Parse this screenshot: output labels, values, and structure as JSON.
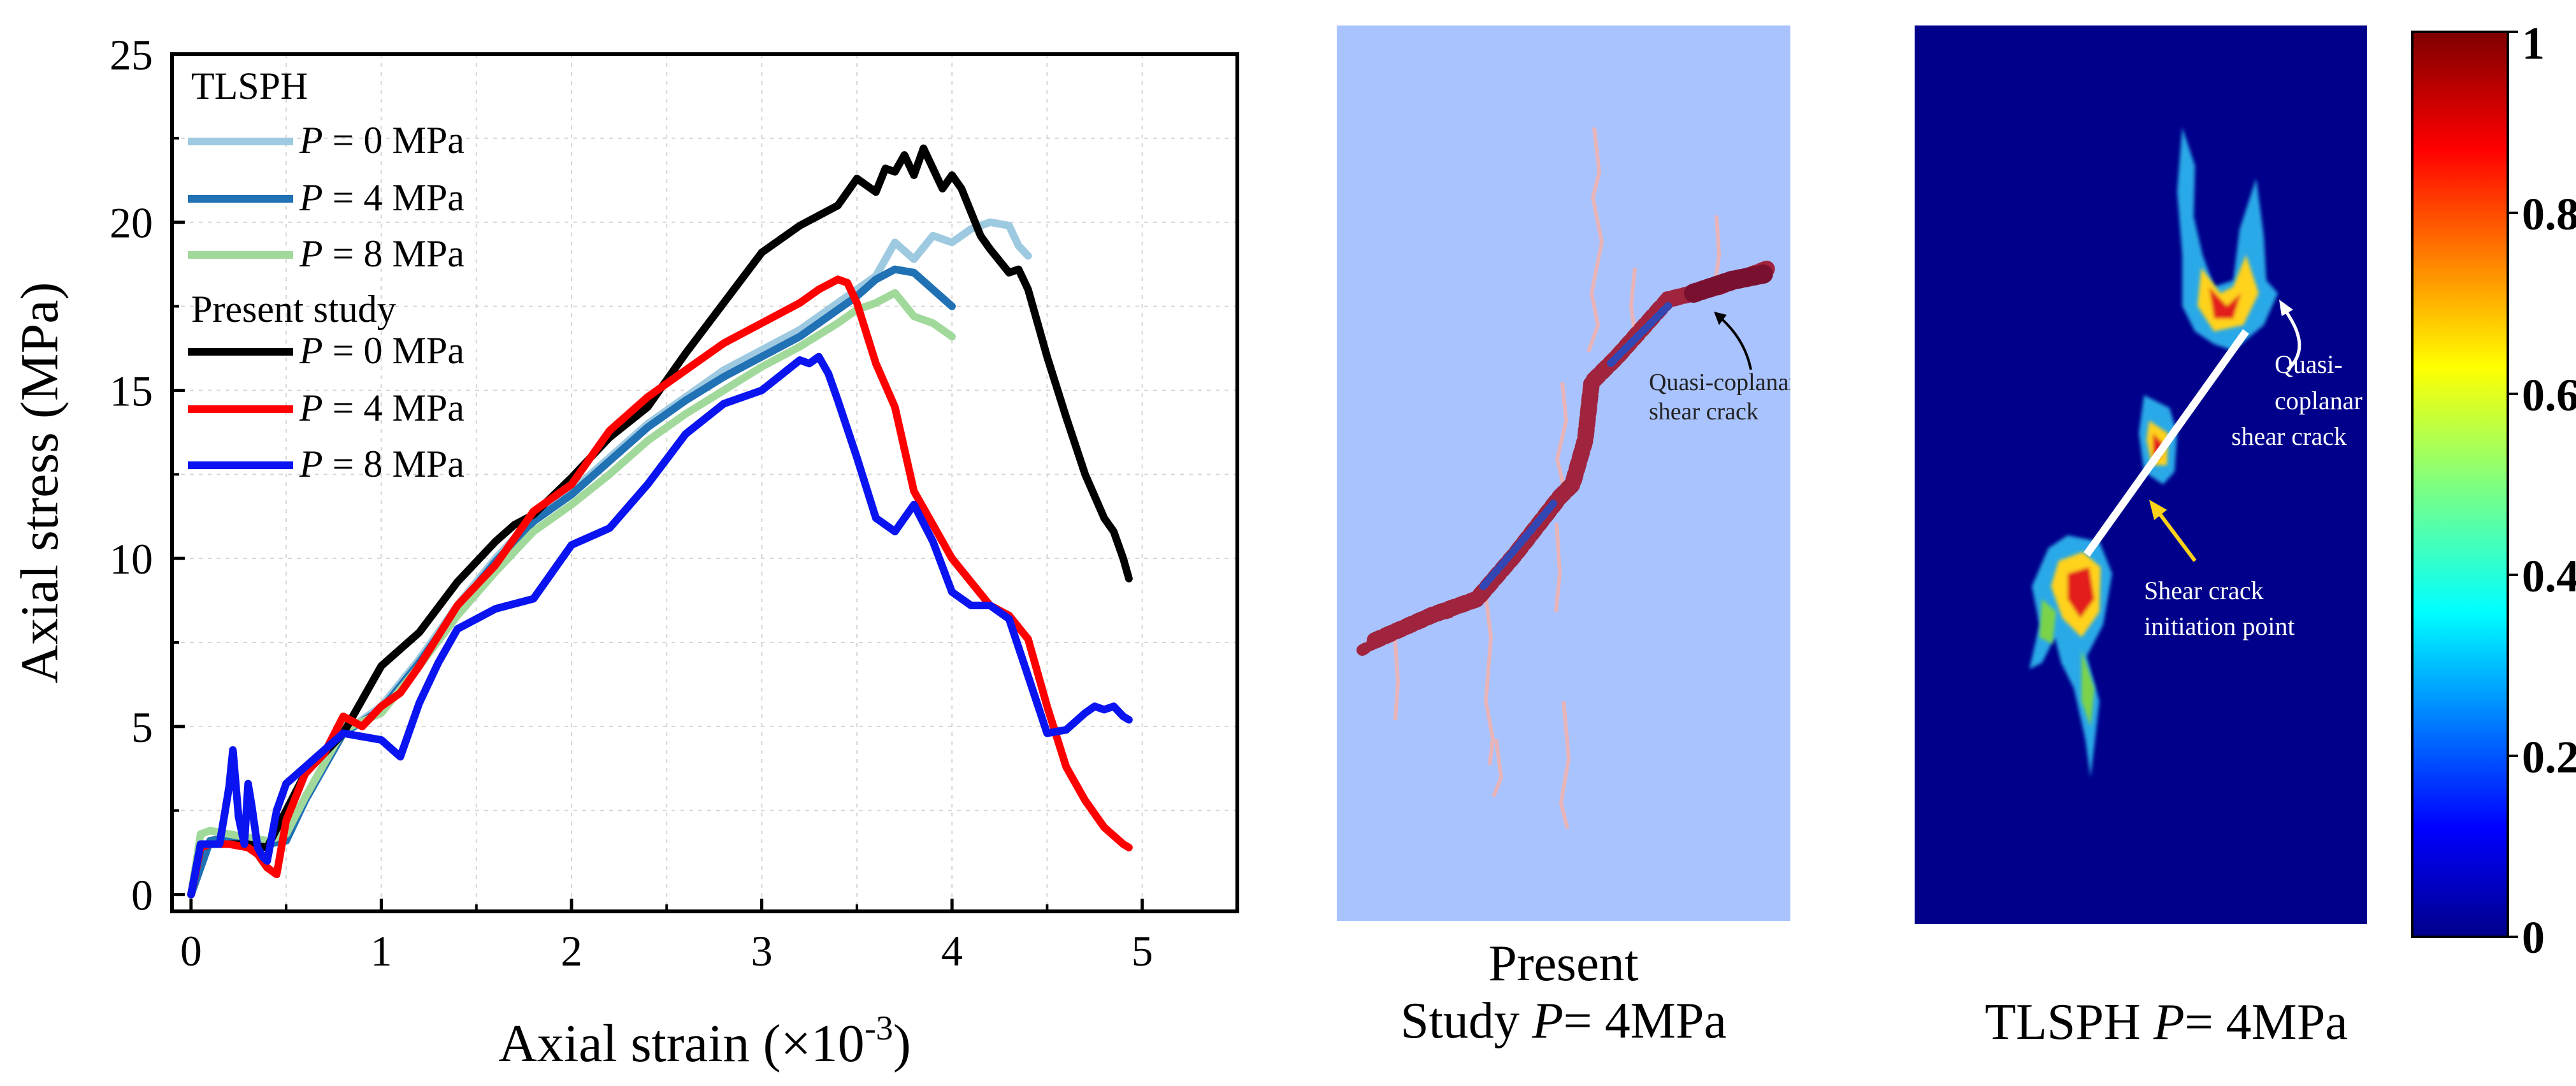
{
  "chart_data": [
    {
      "type": "line",
      "title": "",
      "xlabel": "Axial strain (×10",
      "xlabel_sup": "-3",
      "xlabel_end": ")",
      "ylabel": "Axial stress (MPa)",
      "xlim": [
        -0.1,
        5.5
      ],
      "ylim": [
        -0.5,
        25
      ],
      "xticks": [
        0,
        1,
        2,
        3,
        4,
        5
      ],
      "yticks": [
        0,
        5,
        10,
        15,
        20,
        25
      ],
      "grid": true,
      "legend_position": "top-left",
      "legend": {
        "group1_title": "TLSPH",
        "group2_title": "Present study",
        "entries": [
          {
            "var": "P",
            "text": " = 0 MPa"
          },
          {
            "var": "P",
            "text": " = 4 MPa"
          },
          {
            "var": "P",
            "text": " = 8 MPa"
          },
          {
            "var": "P",
            "text": " = 0 MPa"
          },
          {
            "var": "P",
            "text": " = 4 MPa"
          },
          {
            "var": "P",
            "text": " = 8 MPa"
          }
        ]
      },
      "series": [
        {
          "group": "TLSPH",
          "name": "P = 0 MPa",
          "color": "#9ecae1",
          "x": [
            0,
            0.1,
            0.2,
            0.3,
            0.4,
            0.5,
            0.6,
            0.8,
            1.0,
            1.2,
            1.4,
            1.6,
            1.8,
            2.0,
            2.2,
            2.4,
            2.6,
            2.8,
            3.0,
            3.2,
            3.4,
            3.6,
            3.7,
            3.8,
            3.9,
            4.0,
            4.1,
            4.2,
            4.3,
            4.35,
            4.4
          ],
          "y": [
            0,
            1.6,
            1.7,
            1.6,
            1.5,
            1.6,
            2.8,
            4.8,
            5.6,
            7.0,
            8.6,
            10.0,
            11.2,
            12.0,
            13.0,
            14.0,
            14.8,
            15.6,
            16.2,
            16.8,
            17.6,
            18.4,
            19.4,
            18.9,
            19.6,
            19.4,
            19.8,
            20.0,
            19.9,
            19.3,
            19.0
          ]
        },
        {
          "group": "TLSPH",
          "name": "P = 4 MPa",
          "color": "#2171b5",
          "x": [
            0,
            0.1,
            0.2,
            0.3,
            0.4,
            0.5,
            0.6,
            0.8,
            1.0,
            1.2,
            1.4,
            1.6,
            1.8,
            2.0,
            2.2,
            2.4,
            2.6,
            2.8,
            3.0,
            3.2,
            3.4,
            3.5,
            3.6,
            3.7,
            3.8,
            3.9,
            4.0
          ],
          "y": [
            0,
            1.6,
            1.7,
            1.6,
            1.5,
            1.6,
            2.8,
            4.8,
            5.5,
            6.9,
            8.5,
            9.9,
            11.1,
            11.9,
            12.9,
            13.9,
            14.7,
            15.4,
            16.0,
            16.6,
            17.4,
            17.8,
            18.3,
            18.6,
            18.5,
            18.0,
            17.5
          ]
        },
        {
          "group": "TLSPH",
          "name": "P = 8 MPa",
          "color": "#a1d99b",
          "x": [
            0,
            0.05,
            0.1,
            0.2,
            0.3,
            0.4,
            0.5,
            0.6,
            0.8,
            1.0,
            1.2,
            1.4,
            1.6,
            1.8,
            2.0,
            2.2,
            2.4,
            2.6,
            2.8,
            3.0,
            3.2,
            3.4,
            3.5,
            3.6,
            3.7,
            3.8,
            3.9,
            4.0
          ],
          "y": [
            0,
            1.8,
            1.9,
            1.8,
            1.7,
            1.6,
            1.8,
            2.9,
            4.9,
            5.4,
            6.8,
            8.3,
            9.6,
            10.8,
            11.6,
            12.5,
            13.5,
            14.3,
            15.0,
            15.7,
            16.3,
            17.0,
            17.4,
            17.6,
            17.9,
            17.2,
            17.0,
            16.6
          ]
        },
        {
          "group": "Present study",
          "name": "P = 0 MPa",
          "color": "#000000",
          "x": [
            0,
            0.05,
            0.1,
            0.2,
            0.3,
            0.4,
            0.5,
            0.6,
            0.8,
            1.0,
            1.2,
            1.4,
            1.6,
            1.7,
            1.8,
            2.0,
            2.2,
            2.4,
            2.6,
            2.8,
            3.0,
            3.2,
            3.4,
            3.5,
            3.6,
            3.65,
            3.7,
            3.75,
            3.8,
            3.85,
            3.9,
            3.95,
            4.0,
            4.05,
            4.1,
            4.15,
            4.2,
            4.3,
            4.35,
            4.4,
            4.5,
            4.6,
            4.7,
            4.8,
            4.85,
            4.9,
            4.93
          ],
          "y": [
            0,
            1.4,
            1.5,
            1.5,
            1.5,
            1.4,
            2.5,
            3.6,
            4.8,
            6.8,
            7.8,
            9.3,
            10.5,
            11.0,
            11.3,
            12.4,
            13.6,
            14.5,
            16.1,
            17.6,
            19.1,
            19.9,
            20.5,
            21.3,
            20.9,
            21.6,
            21.5,
            22.0,
            21.4,
            22.2,
            21.6,
            21.0,
            21.4,
            21.0,
            20.3,
            19.6,
            19.2,
            18.5,
            18.6,
            18.0,
            16.0,
            14.2,
            12.5,
            11.2,
            10.8,
            10.0,
            9.4
          ]
        },
        {
          "group": "Present study",
          "name": "P = 4 MPa",
          "color": "#ff0000",
          "x": [
            0,
            0.05,
            0.1,
            0.2,
            0.3,
            0.35,
            0.4,
            0.45,
            0.5,
            0.6,
            0.7,
            0.8,
            0.9,
            1.0,
            1.1,
            1.2,
            1.4,
            1.6,
            1.8,
            2.0,
            2.2,
            2.4,
            2.6,
            2.8,
            3.0,
            3.2,
            3.3,
            3.4,
            3.45,
            3.5,
            3.6,
            3.7,
            3.8,
            3.9,
            4.0,
            4.1,
            4.2,
            4.3,
            4.4,
            4.5,
            4.6,
            4.7,
            4.8,
            4.9,
            4.93
          ],
          "y": [
            0,
            1.4,
            1.5,
            1.5,
            1.4,
            1.2,
            0.8,
            0.6,
            2.2,
            3.6,
            4.2,
            5.3,
            5.0,
            5.6,
            6.0,
            6.8,
            8.6,
            9.8,
            11.4,
            12.2,
            13.8,
            14.8,
            15.6,
            16.4,
            17.0,
            17.6,
            18.0,
            18.3,
            18.2,
            17.6,
            15.8,
            14.5,
            12.0,
            11.0,
            10.0,
            9.3,
            8.6,
            8.3,
            7.6,
            5.6,
            3.8,
            2.8,
            2.0,
            1.5,
            1.4
          ]
        },
        {
          "group": "Present study",
          "name": "P = 8 MPa",
          "color": "#0a14f0",
          "x": [
            0,
            0.05,
            0.1,
            0.15,
            0.2,
            0.22,
            0.25,
            0.28,
            0.3,
            0.32,
            0.35,
            0.38,
            0.4,
            0.45,
            0.5,
            0.6,
            0.8,
            1.0,
            1.1,
            1.2,
            1.3,
            1.4,
            1.6,
            1.8,
            2.0,
            2.2,
            2.4,
            2.6,
            2.8,
            3.0,
            3.2,
            3.25,
            3.3,
            3.35,
            3.4,
            3.5,
            3.6,
            3.7,
            3.8,
            3.9,
            4.0,
            4.1,
            4.2,
            4.3,
            4.4,
            4.5,
            4.6,
            4.7,
            4.75,
            4.8,
            4.85,
            4.9,
            4.93
          ],
          "y": [
            0,
            1.5,
            1.5,
            1.5,
            3.2,
            4.3,
            2.3,
            1.5,
            3.3,
            2.6,
            1.4,
            1.1,
            1.0,
            2.5,
            3.3,
            3.8,
            4.8,
            4.6,
            4.1,
            5.7,
            6.9,
            7.9,
            8.5,
            8.8,
            10.4,
            10.9,
            12.2,
            13.7,
            14.6,
            15.0,
            15.9,
            15.8,
            16.0,
            15.5,
            14.7,
            13.0,
            11.2,
            10.8,
            11.6,
            10.5,
            9.0,
            8.6,
            8.6,
            8.2,
            6.5,
            4.8,
            4.9,
            5.4,
            5.6,
            5.5,
            5.6,
            5.3,
            5.2
          ]
        }
      ]
    },
    {
      "type": "heatmap",
      "caption_line1": "Present",
      "caption_line2_pre": "Study ",
      "caption_var": "P",
      "caption_line2_post": "= 4MPa",
      "annotation": {
        "line1": "Quasi-coplanar",
        "line2": "shear crack"
      },
      "background": "#a9c3ff",
      "crack_color": "#a0243e"
    },
    {
      "type": "heatmap",
      "caption_pre": "TLSPH ",
      "caption_var": "P",
      "caption_post": "= 4MPa",
      "annotations": [
        {
          "lines": [
            "Quasi-",
            "coplanar",
            "shear crack"
          ]
        },
        {
          "lines": [
            "Shear crack",
            "initiation point"
          ]
        }
      ],
      "colorbar": {
        "min": 0,
        "max": 1,
        "ticks": [
          "1",
          "0.8",
          "0.6",
          "0.4",
          "0.2",
          "0"
        ],
        "colormap": "jet"
      },
      "background": "#00008b"
    }
  ]
}
